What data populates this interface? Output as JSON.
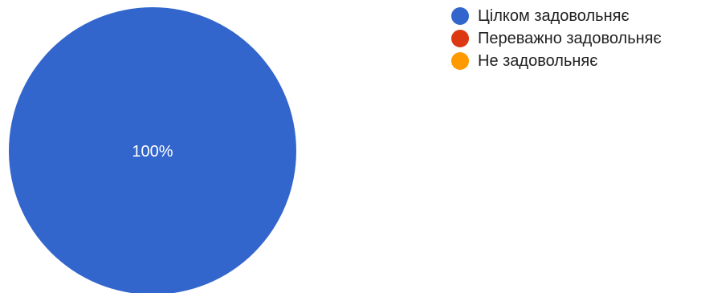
{
  "chart_data": {
    "type": "pie",
    "slices": [
      {
        "label": "Цілком задовольняє",
        "value": 100,
        "color": "#3366cc"
      },
      {
        "label": "Переважно задовольняє",
        "value": 0,
        "color": "#dc3912"
      },
      {
        "label": "Не задовольняє",
        "value": 0,
        "color": "#ff9900"
      }
    ],
    "data_labels": [
      "100%"
    ],
    "label_color": "#ffffff",
    "legend_position": "top-right"
  }
}
